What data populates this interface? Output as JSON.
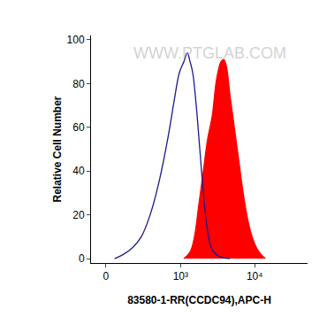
{
  "chart_data": {
    "type": "line",
    "x_label": "83580-1-RR(CCDC94),APC-H",
    "y_label": "Relative Cell Number",
    "log": "x",
    "grid": false,
    "xlim": [
      -95,
      51300
    ],
    "xticks": [
      {
        "value": 0,
        "label": "0"
      },
      {
        "value": 1000,
        "label": "10³"
      },
      {
        "value": 10000,
        "label": "10⁴"
      }
    ],
    "ylim": [
      -2,
      102
    ],
    "yticks": [
      0,
      20,
      40,
      60,
      80,
      100
    ],
    "annotations": [
      {
        "text": "WWW.PTGLAB.COM"
      }
    ],
    "series": [
      {
        "type": "area",
        "color": "#ff0000",
        "x": [
          1108,
          1346,
          1544,
          1774,
          2036,
          2336,
          2680,
          3072,
          3524,
          3826,
          4156,
          4640,
          5320,
          6100,
          7000,
          8040,
          9220,
          10560,
          12120,
          13900
        ],
        "values": [
          0,
          3,
          10,
          25,
          40,
          55,
          65,
          82,
          90,
          91,
          88,
          75,
          60,
          45,
          30,
          18,
          10,
          5,
          2,
          0
        ]
      },
      {
        "type": "line",
        "color": "#1a1a8c",
        "x": [
          55,
          115,
          184,
          266,
          368,
          498,
          666,
          814,
          962,
          1108,
          1236,
          1346,
          1462,
          1632,
          1824,
          2036,
          2336,
          2680,
          3338,
          4640
        ],
        "values": [
          0,
          2,
          5,
          10,
          20,
          35,
          55,
          72,
          85,
          90,
          94,
          90,
          85,
          70,
          50,
          30,
          12,
          4,
          1,
          0
        ]
      }
    ]
  }
}
